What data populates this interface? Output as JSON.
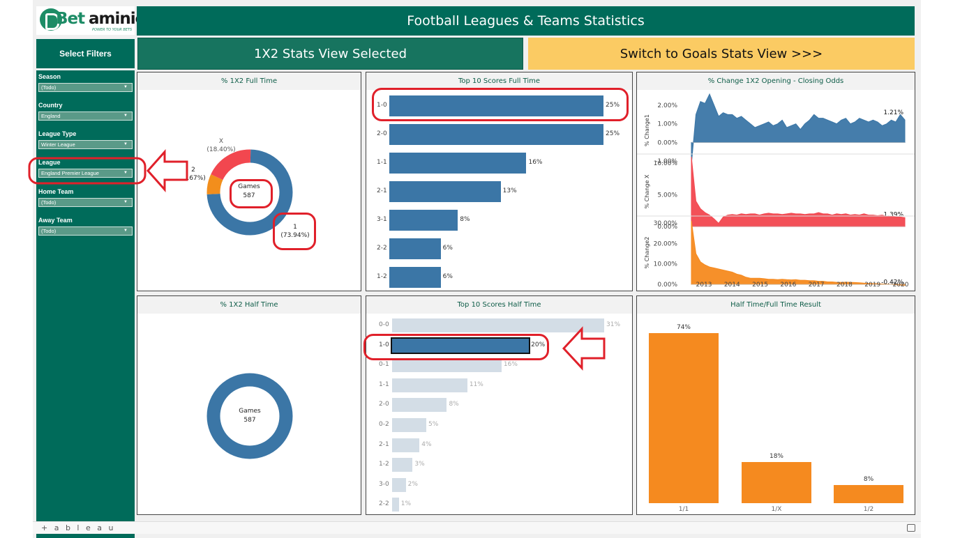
{
  "logo": {
    "brand_b": "Bet",
    "brand_rest": "aminic",
    "tagline": "POWER TO YOUR BETS"
  },
  "header": {
    "title": "Football Leagues & Teams Statistics"
  },
  "select_filters_label": "Select Filters",
  "view_buttons": {
    "current": "1X2 Stats View Selected",
    "switch": "Switch to Goals Stats View >>>"
  },
  "filters": [
    {
      "label": "Season",
      "value": "(Todo)"
    },
    {
      "label": "Country",
      "value": "England"
    },
    {
      "label": "League Type",
      "value": "Winter League"
    },
    {
      "label": "League",
      "value": "England Premier League"
    },
    {
      "label": "Home Team",
      "value": "(Todo)"
    },
    {
      "label": "Away Team",
      "value": "(Todo)"
    }
  ],
  "panels": {
    "ft_1x2": "% 1X2 Full Time",
    "top_ft": "Top 10 Scores Full Time",
    "odds": "% Change 1X2 Opening - Closing Odds",
    "ht_1x2": "% 1X2 Half Time",
    "top_ht": "Top 10 Scores Half Time",
    "htft": "Half Time/Full Time Result"
  },
  "donut_ft": {
    "center_label": "Games",
    "center_value": "587",
    "slices": [
      {
        "name": "1",
        "pct_label": "(73.94%)",
        "value": 73.94,
        "color": "#3b76a6"
      },
      {
        "name": "2",
        "pct_label": "(7.67%)",
        "value": 7.67,
        "color": "#f28e1c"
      },
      {
        "name": "X",
        "pct_label": "(18.40%)",
        "value": 18.4,
        "color": "#f2474f"
      }
    ]
  },
  "donut_ht": {
    "center_label": "Games",
    "center_value": "587",
    "color": "#3b76a6"
  },
  "chart_data": [
    {
      "type": "bar",
      "title": "Top 10 Scores Full Time",
      "categories": [
        "1-0",
        "2-0",
        "1-1",
        "2-1",
        "3-1",
        "2-2",
        "1-2"
      ],
      "values": [
        25,
        25,
        16,
        13,
        8,
        6,
        6
      ],
      "labels": [
        "25%",
        "25%",
        "16%",
        "13%",
        "8%",
        "6%",
        "6%"
      ],
      "color": "#3b76a6"
    },
    {
      "type": "bar",
      "title": "Top 10 Scores Half Time",
      "categories": [
        "0-0",
        "1-0",
        "0-1",
        "1-1",
        "2-0",
        "0-2",
        "2-1",
        "1-2",
        "3-0",
        "2-2"
      ],
      "values": [
        31,
        20,
        16,
        11,
        8,
        5,
        4,
        3,
        2,
        1
      ],
      "labels": [
        "31%",
        "20%",
        "16%",
        "11%",
        "8%",
        "5%",
        "4%",
        "3%",
        "2%",
        "1%"
      ],
      "highlight": "1-0",
      "color": "#3b76a6",
      "faded_color": "#d3dde6"
    },
    {
      "type": "bar",
      "title": "Half Time/Full Time Result",
      "categories": [
        "1/1",
        "1/X",
        "1/2"
      ],
      "values": [
        74,
        18,
        8
      ],
      "labels": [
        "74%",
        "18%",
        "8%"
      ],
      "color": "#f58a1f"
    },
    {
      "type": "area",
      "title": "% Change 1X2 Opening - Closing Odds",
      "x_ticks": [
        "2013",
        "2014",
        "2015",
        "2016",
        "2017",
        "2018",
        "2019",
        "2020"
      ],
      "series": [
        {
          "name": "% Change1",
          "color": "#3b76a6",
          "yticks": [
            "2.00%",
            "1.00%",
            "0.00%",
            "-1.00%"
          ],
          "ylim": [
            -1.3,
            2.6
          ],
          "last_label": "1.21%",
          "values": [
            -1.2,
            1.5,
            2.2,
            2.1,
            2.6,
            2.0,
            1.4,
            1.6,
            1.5,
            1.5,
            1.3,
            1.4,
            1.2,
            1.0,
            0.8,
            0.9,
            1.0,
            1.1,
            0.9,
            1.0,
            1.2,
            0.8,
            0.9,
            1.0,
            0.7,
            1.0,
            1.2,
            1.5,
            1.3,
            1.3,
            1.2,
            1.1,
            1.0,
            1.2,
            1.3,
            1.0,
            1.1,
            1.3,
            1.2,
            1.1,
            1.2,
            1.1,
            0.9,
            1.0,
            1.2,
            1.1,
            1.5,
            1.21
          ]
        },
        {
          "name": "% Change X",
          "color": "#f2474f",
          "yticks": [
            "10.00%",
            "5.00%",
            "0.00%"
          ],
          "ylim": [
            0,
            11
          ],
          "last_label": "1.39%",
          "values": [
            11.0,
            4.0,
            2.8,
            2.2,
            1.8,
            1.2,
            0.5,
            1.5,
            1.8,
            1.9,
            1.8,
            2.0,
            1.9,
            2.0,
            2.0,
            1.8,
            2.0,
            2.1,
            2.0,
            2.0,
            1.9,
            2.0,
            2.1,
            2.0,
            2.0,
            1.9,
            2.0,
            2.0,
            2.2,
            2.0,
            2.0,
            1.8,
            2.0,
            1.9,
            2.0,
            1.8,
            1.9,
            1.8,
            2.0,
            1.8,
            1.8,
            1.7,
            1.8,
            1.6,
            1.6,
            1.5,
            1.5,
            1.39
          ]
        },
        {
          "name": "% Change2",
          "color": "#f58a1f",
          "yticks": [
            "30.00%",
            "20.00%",
            "10.00%",
            "0.00%"
          ],
          "ylim": [
            -1,
            32
          ],
          "last_label": "-0.42%",
          "values": [
            31.0,
            15.0,
            11.0,
            9.5,
            8.5,
            8.0,
            7.5,
            7.0,
            6.5,
            6.0,
            5.0,
            4.5,
            3.5,
            3.0,
            3.0,
            3.0,
            2.8,
            2.5,
            2.5,
            2.3,
            2.5,
            2.3,
            2.2,
            2.3,
            2.0,
            2.0,
            1.8,
            1.8,
            1.5,
            1.5,
            1.2,
            1.2,
            1.0,
            1.0,
            1.1,
            1.0,
            0.9,
            0.8,
            0.6,
            0.5,
            0.4,
            0.3,
            0.2,
            0.1,
            0.0,
            -0.2,
            -0.3,
            -0.42
          ]
        }
      ]
    }
  ],
  "footer": {
    "brand": "+ a b l e a u"
  }
}
